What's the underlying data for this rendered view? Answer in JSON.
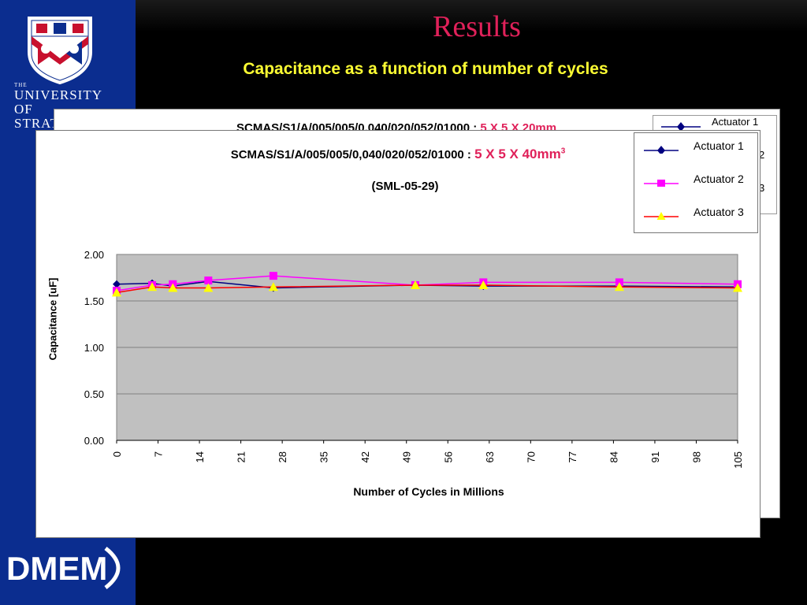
{
  "slide": {
    "title": "Results",
    "subtitle": "Capacitance as a function of number of cycles"
  },
  "branding": {
    "university_the": "THE",
    "university_name_line1": "UNIVERSITY OF",
    "university_name_line2": "STRATHCLYDE",
    "department_logo_text": "DMEM",
    "sidebar_color": "#0b2d8f",
    "title_color": "#e0215a",
    "subtitle_color": "#ffff33"
  },
  "chart_data": {
    "type": "line",
    "title_main": "SCMAS/S1/A/005/005/0,040/020/052/01000 : ",
    "title_highlight": "5 X 5 X 40mm",
    "title_highlight_sup": "3",
    "subtitle": "(SML-05-29)",
    "xlabel": "Number of Cycles in Millions",
    "ylabel": "Capacitance [uF]",
    "x_ticks": [
      "0",
      "7",
      "14",
      "21",
      "28",
      "35",
      "42",
      "49",
      "56",
      "63",
      "70",
      "77",
      "84",
      "91",
      "98",
      "105"
    ],
    "y_ticks": [
      "0.00",
      "0.50",
      "1.00",
      "1.50",
      "2.00"
    ],
    "xlim": [
      0,
      105
    ],
    "ylim": [
      0,
      2
    ],
    "plot_background": "#c0c0c0",
    "legend_position": "top-right",
    "series": [
      {
        "name": "Actuator 1",
        "color": "#000080",
        "marker": "diamond",
        "x": [
          0,
          6,
          9.5,
          15.5,
          26.5,
          50.5,
          62,
          85,
          105
        ],
        "y": [
          1.68,
          1.69,
          1.66,
          1.71,
          1.64,
          1.67,
          1.66,
          1.66,
          1.65
        ]
      },
      {
        "name": "Actuator 2",
        "color": "#ff00ff",
        "marker": "square",
        "x": [
          0,
          6,
          9.5,
          15.5,
          26.5,
          50.5,
          62,
          85,
          105
        ],
        "y": [
          1.61,
          1.67,
          1.68,
          1.72,
          1.77,
          1.67,
          1.7,
          1.7,
          1.68
        ]
      },
      {
        "name": "Actuator 3",
        "color": "#ff0000",
        "marker_fill": "#ffff00",
        "marker": "triangle",
        "x": [
          0,
          6,
          9.5,
          15.5,
          26.5,
          50.5,
          62,
          85,
          105
        ],
        "y": [
          1.59,
          1.65,
          1.64,
          1.64,
          1.65,
          1.67,
          1.67,
          1.65,
          1.64
        ]
      }
    ]
  },
  "back_chart": {
    "legend_entries": [
      "Actuator 1",
      "2",
      "3"
    ],
    "title_peek": "SCMAS/S1/A/005/005/0,040/020/052/01000 : ",
    "title_peek_red": "5 X 5 X 20mm"
  }
}
